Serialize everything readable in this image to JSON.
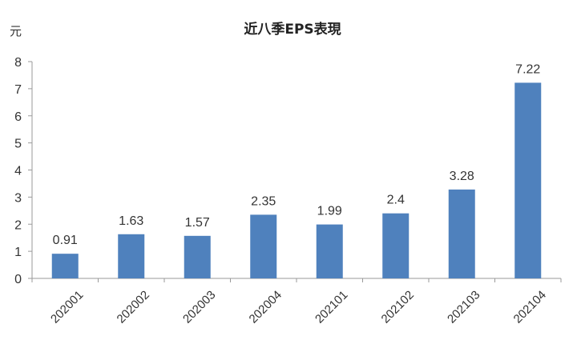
{
  "chart_data": {
    "type": "bar",
    "title": "近八季EPS表現",
    "ylabel": "元",
    "xlabel": "",
    "categories": [
      "202001",
      "202002",
      "202003",
      "202004",
      "202101",
      "202102",
      "202103",
      "202104"
    ],
    "values": [
      0.91,
      1.63,
      1.57,
      2.35,
      1.99,
      2.4,
      3.28,
      7.22
    ],
    "value_labels": [
      "0.91",
      "1.63",
      "1.57",
      "2.35",
      "1.99",
      "2.4",
      "3.28",
      "7.22"
    ],
    "ylim": [
      0,
      8
    ],
    "yticks": [
      0,
      1,
      2,
      3,
      4,
      5,
      6,
      7,
      8
    ],
    "grid": false,
    "legend": "none",
    "bar_color": "#4f81bd"
  }
}
